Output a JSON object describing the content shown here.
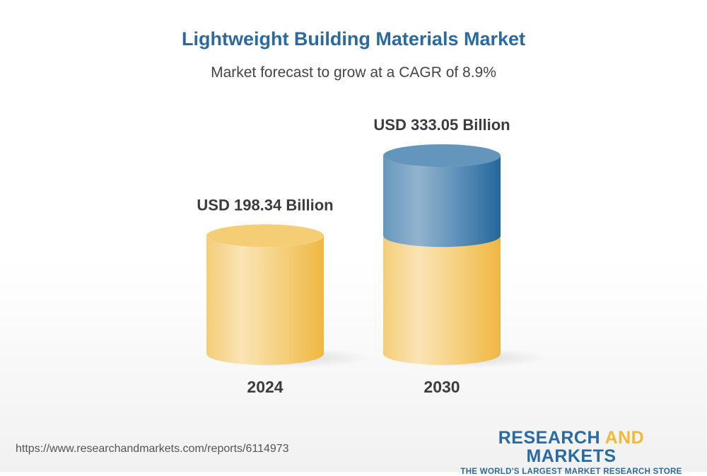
{
  "header": {
    "title": "Lightweight Building Materials Market",
    "subtitle": "Market forecast to grow at a CAGR of 8.9%"
  },
  "chart_data": {
    "type": "bar",
    "style": "3d-cylinder",
    "categories": [
      "2024",
      "2030"
    ],
    "values": [
      198.34,
      333.05
    ],
    "value_labels": [
      "USD 198.34 Billion",
      "USD 333.05 Billion"
    ],
    "unit": "USD Billion",
    "colors": {
      "base": "#f2c35a",
      "growth": "#2b6a9e"
    },
    "grid": false
  },
  "footer": {
    "url": "https://www.researchandmarkets.com/reports/6114973",
    "logo_part1": "RESEARCH ",
    "logo_part2": "AND",
    "logo_part3": " MARKETS",
    "tagline": "THE WORLD'S LARGEST MARKET RESEARCH STORE"
  }
}
